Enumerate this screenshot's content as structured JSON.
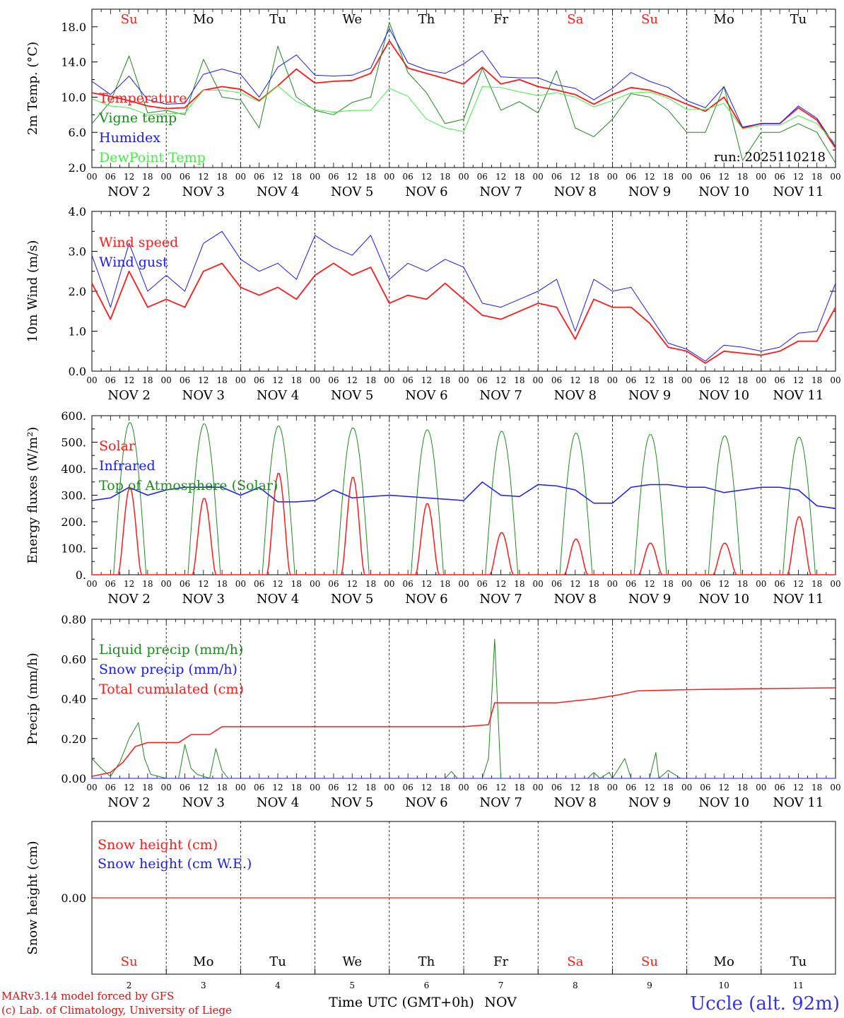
{
  "colors": {
    "red": "#ff1a1a",
    "darkgreen": "#1e8a1e",
    "blue": "#1a1aff",
    "lightgreen": "#44ee44",
    "axis": "#000000",
    "footer_red": "#dd1111",
    "footer_blue": "#3333ee"
  },
  "run_label": "run: 2025110218",
  "footer": {
    "model": "MARv3.14 model forced by GFS",
    "credit": "(c) Lab. of Climatology, University of Liege",
    "xlabel": "Time UTC (GMT+0h)",
    "month": "NOV",
    "station": "Uccle (alt. 92m)"
  },
  "days": [
    {
      "abbr": "Su",
      "weekend": true,
      "date": "NOV  2",
      "num": "2"
    },
    {
      "abbr": "Mo",
      "weekend": false,
      "date": "NOV  3",
      "num": "3"
    },
    {
      "abbr": "Tu",
      "weekend": false,
      "date": "NOV  4",
      "num": "4"
    },
    {
      "abbr": "We",
      "weekend": false,
      "date": "NOV  5",
      "num": "5"
    },
    {
      "abbr": "Th",
      "weekend": false,
      "date": "NOV  6",
      "num": "6"
    },
    {
      "abbr": "Fr",
      "weekend": false,
      "date": "NOV  7",
      "num": "7"
    },
    {
      "abbr": "Sa",
      "weekend": true,
      "date": "NOV  8",
      "num": "8"
    },
    {
      "abbr": "Su",
      "weekend": true,
      "date": "NOV  9",
      "num": "9"
    },
    {
      "abbr": "Mo",
      "weekend": false,
      "date": "NOV 10",
      "num": "10"
    },
    {
      "abbr": "Tu",
      "weekend": false,
      "date": "NOV 11",
      "num": "11"
    }
  ],
  "hour_ticks": [
    "00",
    "06",
    "12",
    "18"
  ],
  "chart_data": [
    {
      "id": "temp",
      "type": "line",
      "ylabel": "2m Temp. (°C)",
      "ylim": [
        2,
        20
      ],
      "yticks": [
        2,
        6,
        10,
        14,
        18
      ],
      "ytick_labels": [
        "2.0",
        "6.0",
        "10.0",
        "14.0",
        "18.0"
      ],
      "x_hours": [
        0,
        6,
        12,
        18,
        24,
        30,
        36,
        42,
        48,
        54,
        60,
        66,
        72,
        78,
        84,
        90,
        96,
        102,
        108,
        114,
        120,
        126,
        132,
        138,
        144,
        150,
        156,
        162,
        168,
        174,
        180,
        186,
        192,
        198,
        204,
        210,
        216,
        222,
        228,
        234,
        240
      ],
      "series": [
        {
          "name": "Temperature",
          "color": "red",
          "width": 1.8,
          "values": [
            10.5,
            10.1,
            9.6,
            9.0,
            8.7,
            8.8,
            10.8,
            11.2,
            10.9,
            9.6,
            11.3,
            13.2,
            11.6,
            11.8,
            11.9,
            12.7,
            16.4,
            13.3,
            12.7,
            12.1,
            11.5,
            13.4,
            11.5,
            12.0,
            11.2,
            10.8,
            10.3,
            9.2,
            10.3,
            11.1,
            10.8,
            10.1,
            9.2,
            8.4,
            10.0,
            6.5,
            7.0,
            7.0,
            8.8,
            7.4,
            4.2
          ]
        },
        {
          "name": "Vigne temp",
          "color": "darkgreen",
          "width": 1.0,
          "values": [
            7.0,
            9.5,
            14.7,
            8.2,
            8.5,
            8.0,
            14.3,
            10.0,
            9.7,
            6.5,
            15.8,
            10.0,
            8.5,
            8.0,
            9.4,
            10.0,
            18.5,
            12.8,
            10.5,
            7.0,
            7.5,
            13.3,
            8.5,
            9.5,
            8.2,
            13.0,
            6.5,
            5.5,
            7.5,
            10.4,
            10.0,
            8.5,
            6.0,
            6.0,
            11.2,
            2.8,
            6.0,
            6.0,
            7.0,
            6.0,
            2.5
          ]
        },
        {
          "name": "Humidex",
          "color": "blue",
          "width": 1.0,
          "values": [
            11.8,
            10.3,
            12.4,
            9.7,
            9.2,
            9.3,
            12.6,
            13.2,
            12.6,
            10.0,
            13.4,
            14.8,
            12.5,
            12.4,
            12.5,
            13.3,
            17.8,
            13.9,
            13.1,
            12.7,
            13.8,
            15.3,
            12.3,
            12.2,
            12.2,
            11.4,
            11.0,
            9.7,
            11.0,
            12.8,
            11.8,
            11.1,
            9.6,
            8.8,
            11.2,
            6.6,
            7.0,
            7.0,
            9.0,
            7.6,
            4.4
          ]
        },
        {
          "name": "DewPoint Temp",
          "color": "lightgreen",
          "width": 1.0,
          "values": [
            9.8,
            9.0,
            8.8,
            8.0,
            8.1,
            8.2,
            10.8,
            10.8,
            10.5,
            9.5,
            11.3,
            9.5,
            8.6,
            8.3,
            8.5,
            8.5,
            11.0,
            10.1,
            7.5,
            6.5,
            6.1,
            11.2,
            11.1,
            10.6,
            10.2,
            10.5,
            10.0,
            8.9,
            9.6,
            10.5,
            10.6,
            9.9,
            8.6,
            8.6,
            9.3,
            6.4,
            6.8,
            6.8,
            7.9,
            7.0,
            4.7
          ]
        }
      ]
    },
    {
      "id": "wind",
      "type": "line",
      "ylabel": "10m Wind (m/s)",
      "ylim": [
        0,
        4
      ],
      "yticks": [
        0,
        1,
        2,
        3,
        4
      ],
      "ytick_labels": [
        "0.0",
        "1.0",
        "2.0",
        "3.0",
        "4.0"
      ],
      "x_hours": [
        0,
        6,
        12,
        18,
        24,
        30,
        36,
        42,
        48,
        54,
        60,
        66,
        72,
        78,
        84,
        90,
        96,
        102,
        108,
        114,
        120,
        126,
        132,
        138,
        144,
        150,
        156,
        162,
        168,
        174,
        180,
        186,
        192,
        198,
        204,
        210,
        216,
        222,
        228,
        234,
        240
      ],
      "series": [
        {
          "name": "Wind speed",
          "color": "red",
          "width": 1.8,
          "values": [
            2.2,
            1.3,
            2.5,
            1.6,
            1.8,
            1.6,
            2.5,
            2.7,
            2.1,
            1.9,
            2.1,
            1.8,
            2.4,
            2.7,
            2.4,
            2.6,
            1.7,
            1.9,
            1.8,
            2.2,
            1.8,
            1.4,
            1.3,
            1.5,
            1.7,
            1.6,
            0.8,
            1.8,
            1.6,
            1.6,
            1.2,
            0.6,
            0.5,
            0.2,
            0.5,
            0.45,
            0.4,
            0.5,
            0.75,
            0.75,
            1.6
          ]
        },
        {
          "name": "Wind gust",
          "color": "blue",
          "width": 1.0,
          "values": [
            2.9,
            1.6,
            3.2,
            2.0,
            2.4,
            2.0,
            3.2,
            3.5,
            2.8,
            2.5,
            2.7,
            2.3,
            3.4,
            3.1,
            2.9,
            3.4,
            2.3,
            2.7,
            2.5,
            2.8,
            2.6,
            1.7,
            1.6,
            1.8,
            2.0,
            2.3,
            1.0,
            2.3,
            2.0,
            2.1,
            1.4,
            0.7,
            0.55,
            0.25,
            0.65,
            0.6,
            0.5,
            0.6,
            0.95,
            1.0,
            2.2
          ]
        }
      ]
    },
    {
      "id": "energy",
      "type": "line",
      "ylabel": "Energy fluxes (W/m²)",
      "ylim": [
        0,
        600
      ],
      "yticks": [
        0,
        100,
        200,
        300,
        400,
        500,
        600
      ],
      "ytick_labels": [
        "0.",
        "100.",
        "200.",
        "300.",
        "400.",
        "500.",
        "600."
      ],
      "x_hours": [
        0,
        6,
        12,
        18,
        24,
        30,
        36,
        42,
        48,
        54,
        60,
        66,
        72,
        78,
        84,
        90,
        96,
        102,
        108,
        114,
        120,
        126,
        132,
        138,
        144,
        150,
        156,
        162,
        168,
        174,
        180,
        186,
        192,
        198,
        204,
        210,
        216,
        222,
        228,
        234,
        240
      ],
      "series": [
        {
          "name": "Solar",
          "color": "red",
          "width": 1.5,
          "solar_peaks": [
            330,
            290,
            385,
            370,
            270,
            160,
            135,
            120,
            120,
            220
          ]
        },
        {
          "name": "Infrared",
          "color": "blue",
          "width": 1.5,
          "values": [
            280,
            290,
            330,
            300,
            320,
            330,
            330,
            330,
            300,
            330,
            275,
            275,
            280,
            320,
            290,
            295,
            300,
            295,
            290,
            285,
            280,
            350,
            300,
            295,
            340,
            335,
            320,
            270,
            270,
            330,
            340,
            340,
            330,
            330,
            310,
            320,
            330,
            330,
            320,
            260,
            250
          ]
        },
        {
          "name": "Top of Atmosphere (Solar)",
          "color": "darkgreen",
          "width": 1.0,
          "toa_peaks": [
            575,
            570,
            562,
            555,
            548,
            542,
            535,
            530,
            525,
            520
          ]
        }
      ]
    },
    {
      "id": "precip",
      "type": "line",
      "ylabel": "Precip (mm/h)",
      "ylim": [
        0,
        0.8
      ],
      "yticks": [
        0,
        0.2,
        0.4,
        0.6,
        0.8
      ],
      "ytick_labels": [
        "0.00",
        "0.20",
        "0.40",
        "0.60",
        "0.80"
      ],
      "series": [
        {
          "name": "Liquid precip (mm/h)",
          "color": "darkgreen",
          "width": 1.0,
          "points": [
            [
              0,
              0.1
            ],
            [
              3,
              0.05
            ],
            [
              6,
              0.01
            ],
            [
              9,
              0.08
            ],
            [
              12,
              0.2
            ],
            [
              15,
              0.28
            ],
            [
              17,
              0.1
            ],
            [
              19,
              0.02
            ],
            [
              24,
              0.0
            ],
            [
              28,
              0.0
            ],
            [
              30,
              0.17
            ],
            [
              32,
              0.05
            ],
            [
              34,
              0.02
            ],
            [
              38,
              0.0
            ],
            [
              40,
              0.15
            ],
            [
              42,
              0.04
            ],
            [
              44,
              0.0
            ],
            [
              114,
              0.0
            ],
            [
              116,
              0.035
            ],
            [
              118,
              0.0
            ],
            [
              126,
              0.0
            ],
            [
              128,
              0.1
            ],
            [
              130,
              0.7
            ],
            [
              132,
              0.0
            ],
            [
              160,
              0.0
            ],
            [
              162,
              0.03
            ],
            [
              164,
              0.0
            ],
            [
              167,
              0.03
            ],
            [
              168,
              0.0
            ],
            [
              172,
              0.1
            ],
            [
              174,
              0.0
            ],
            [
              180,
              0.0
            ],
            [
              182,
              0.13
            ],
            [
              183,
              0.0
            ],
            [
              186,
              0.04
            ],
            [
              190,
              0.0
            ],
            [
              240,
              0.0
            ]
          ]
        },
        {
          "name": "Snow precip (mm/h)",
          "color": "blue",
          "width": 1.0,
          "points": [
            [
              0,
              0.0
            ],
            [
              240,
              0.0
            ]
          ]
        },
        {
          "name": "Total cumulated (cm)",
          "color": "red",
          "width": 1.5,
          "points": [
            [
              0,
              0.01
            ],
            [
              6,
              0.03
            ],
            [
              10,
              0.08
            ],
            [
              14,
              0.16
            ],
            [
              18,
              0.18
            ],
            [
              28,
              0.18
            ],
            [
              32,
              0.22
            ],
            [
              38,
              0.22
            ],
            [
              42,
              0.26
            ],
            [
              120,
              0.26
            ],
            [
              128,
              0.27
            ],
            [
              130,
              0.38
            ],
            [
              150,
              0.38
            ],
            [
              162,
              0.4
            ],
            [
              170,
              0.42
            ],
            [
              176,
              0.44
            ],
            [
              190,
              0.445
            ],
            [
              210,
              0.45
            ],
            [
              240,
              0.455
            ]
          ]
        }
      ]
    },
    {
      "id": "snow",
      "type": "line",
      "ylabel": "Snow height (cm)",
      "ytick_labels": [
        "0.00"
      ],
      "series": [
        {
          "name": "Snow height (cm)",
          "color": "red",
          "width": 1.2,
          "points": [
            [
              0,
              0
            ],
            [
              240,
              0
            ]
          ]
        },
        {
          "name": "Snow height (cm W.E.)",
          "color": "blue",
          "width": 1.0,
          "points": [
            [
              0,
              0
            ],
            [
              240,
              0
            ]
          ]
        }
      ]
    }
  ]
}
